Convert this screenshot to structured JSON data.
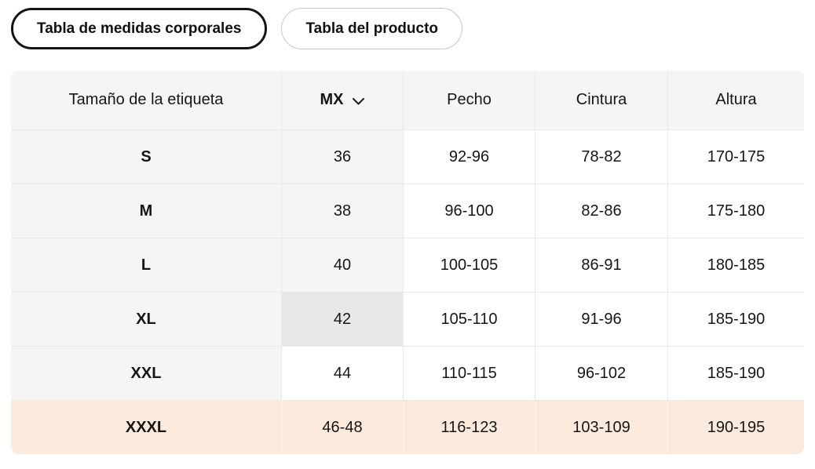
{
  "tabs": [
    {
      "label": "Tabla de medidas corporales",
      "active": true
    },
    {
      "label": "Tabla del producto",
      "active": false
    }
  ],
  "table": {
    "columns": [
      "Tamaño de la etiqueta",
      "MX",
      "Pecho",
      "Cintura",
      "Altura"
    ],
    "size_system_selected": "MX",
    "rows": [
      {
        "label": "S",
        "mx": "36",
        "pecho": "92-96",
        "cintura": "78-82",
        "altura": "170-175"
      },
      {
        "label": "M",
        "mx": "38",
        "pecho": "96-100",
        "cintura": "82-86",
        "altura": "175-180"
      },
      {
        "label": "L",
        "mx": "40",
        "pecho": "100-105",
        "cintura": "86-91",
        "altura": "180-185"
      },
      {
        "label": "XL",
        "mx": "42",
        "pecho": "105-110",
        "cintura": "91-96",
        "altura": "185-190",
        "mx_highlight": true
      },
      {
        "label": "XXL",
        "mx": "44",
        "pecho": "110-115",
        "cintura": "96-102",
        "altura": "185-190",
        "mx_white": true
      },
      {
        "label": "XXXL",
        "mx": "46-48",
        "pecho": "116-123",
        "cintura": "103-109",
        "altura": "190-195",
        "row_highlight": true
      }
    ],
    "colors": {
      "tint": "#f5f5f6",
      "selected_cell": "#e8e8e9",
      "highlight_row": "#fcebdc",
      "active_tab_border": "#141414",
      "inactive_tab_border": "#c8c8c8"
    }
  }
}
